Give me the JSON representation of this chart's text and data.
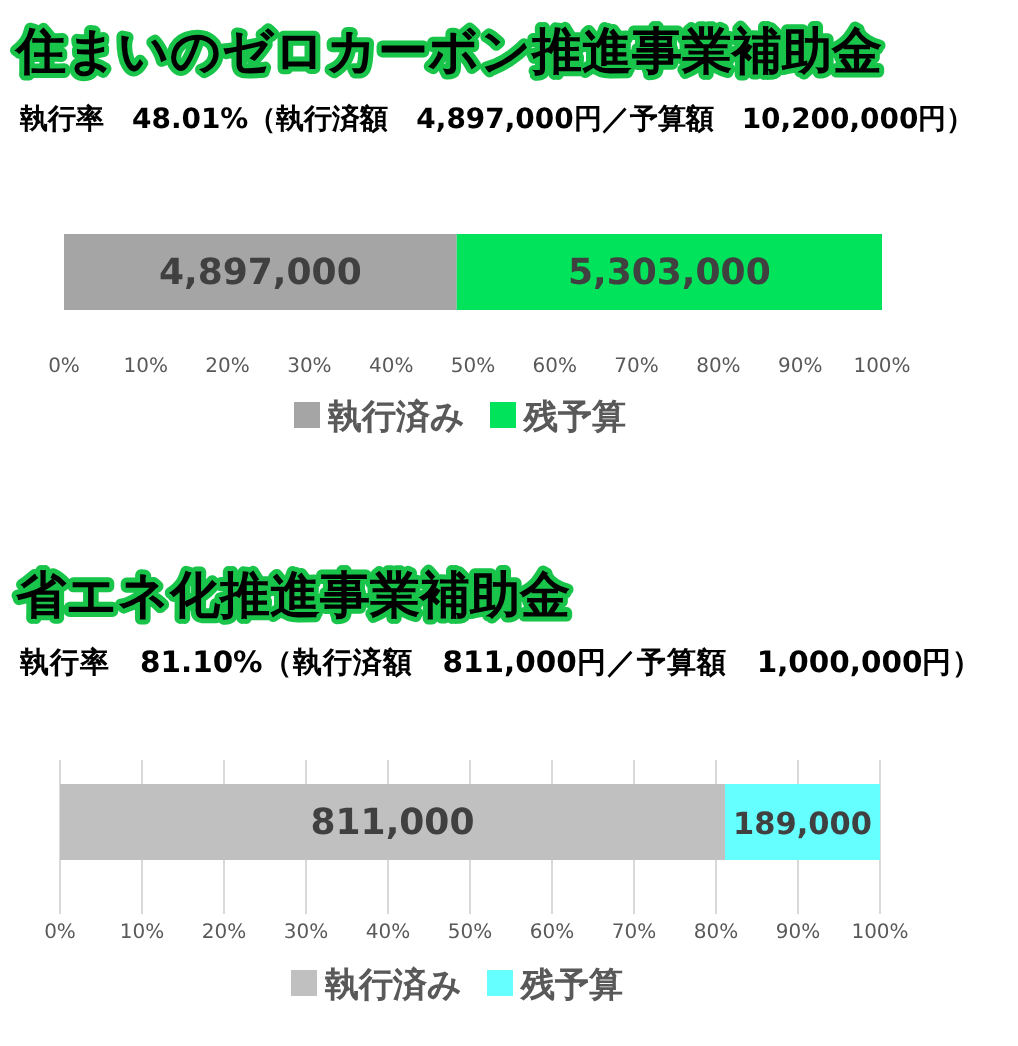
{
  "chart_data": [
    {
      "type": "bar",
      "orientation": "horizontal",
      "stacked": true,
      "title": "住まいのゼロカーボン推進事業補助金",
      "subtitle": "執行率　48.01%（執行済額　4,897,000円／予算額　10,200,000円）",
      "categories": [
        null
      ],
      "series": [
        {
          "name": "執行済み",
          "color": "#a5a5a5",
          "values": [
            48.01
          ]
        },
        {
          "name": "残予算",
          "color": "#00e35a",
          "values": [
            51.99
          ]
        }
      ],
      "annotations": [
        "4,897,000",
        "5,303,000"
      ],
      "xlim": [
        0,
        100
      ],
      "xticks": [
        {
          "value": 0,
          "label": "0%"
        },
        {
          "value": 10,
          "label": "10%"
        },
        {
          "value": 20,
          "label": "20%"
        },
        {
          "value": 30,
          "label": "30%"
        },
        {
          "value": 40,
          "label": "40%"
        },
        {
          "value": 50,
          "label": "50%"
        },
        {
          "value": 60,
          "label": "60%"
        },
        {
          "value": 70,
          "label": "70%"
        },
        {
          "value": 80,
          "label": "80%"
        },
        {
          "value": 90,
          "label": "90%"
        },
        {
          "value": 100,
          "label": "100%"
        }
      ],
      "legend": "bottom",
      "grid": false
    },
    {
      "type": "bar",
      "orientation": "horizontal",
      "stacked": true,
      "title": "省エネ化推進事業補助金",
      "subtitle": "執行率　81.10%（執行済額　811,000円／予算額　1,000,000円）",
      "categories": [
        null
      ],
      "series": [
        {
          "name": "執行済み",
          "color": "#c0c0c0",
          "values": [
            81.1
          ]
        },
        {
          "name": "残予算",
          "color": "#66ffff",
          "values": [
            18.9
          ]
        }
      ],
      "annotations": [
        "811,000",
        "189,000"
      ],
      "xlim": [
        0,
        100
      ],
      "xticks": [
        {
          "value": 0,
          "label": "0%"
        },
        {
          "value": 10,
          "label": "10%"
        },
        {
          "value": 20,
          "label": "20%"
        },
        {
          "value": 30,
          "label": "30%"
        },
        {
          "value": 40,
          "label": "40%"
        },
        {
          "value": 50,
          "label": "50%"
        },
        {
          "value": 60,
          "label": "60%"
        },
        {
          "value": 70,
          "label": "70%"
        },
        {
          "value": 80,
          "label": "80%"
        },
        {
          "value": 90,
          "label": "90%"
        },
        {
          "value": 100,
          "label": "100%"
        }
      ],
      "legend": "bottom",
      "grid": "x"
    }
  ]
}
